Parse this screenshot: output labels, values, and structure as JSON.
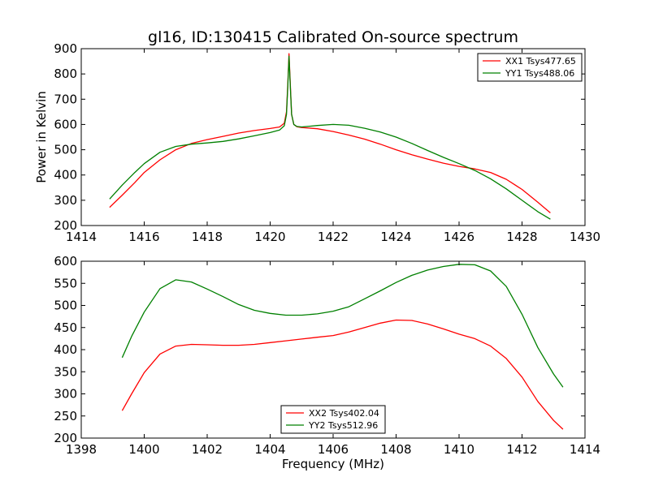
{
  "figure": {
    "title": "gl16, ID:130415 Calibrated On-source spectrum"
  },
  "chart_data": [
    {
      "type": "line",
      "title": "gl16, ID:130415 Calibrated On-source spectrum",
      "xlabel": "",
      "ylabel": "Power in Kelvin",
      "xlim": [
        1414,
        1430
      ],
      "ylim": [
        200,
        900
      ],
      "xticks": [
        1414,
        1416,
        1418,
        1420,
        1422,
        1424,
        1426,
        1428,
        1430
      ],
      "yticks": [
        200,
        300,
        400,
        500,
        600,
        700,
        800,
        900
      ],
      "grid": false,
      "legend": "top-right",
      "series": [
        {
          "name": "XX1 Tsys477.65",
          "color": "#ff0000",
          "x": [
            1414.9,
            1415.3,
            1415.7,
            1416.0,
            1416.5,
            1417.0,
            1417.5,
            1418.0,
            1418.5,
            1419.0,
            1419.5,
            1420.0,
            1420.3,
            1420.45,
            1420.52,
            1420.56,
            1420.6,
            1420.64,
            1420.68,
            1420.75,
            1420.85,
            1421.0,
            1421.5,
            1422.0,
            1422.5,
            1423.0,
            1423.5,
            1424.0,
            1424.5,
            1425.0,
            1425.5,
            1426.0,
            1426.5,
            1427.0,
            1427.5,
            1428.0,
            1428.5,
            1428.9
          ],
          "y": [
            272,
            320,
            370,
            410,
            460,
            500,
            525,
            540,
            553,
            566,
            576,
            584,
            590,
            605,
            650,
            760,
            880,
            760,
            640,
            600,
            591,
            588,
            583,
            572,
            558,
            542,
            522,
            500,
            480,
            463,
            447,
            434,
            424,
            410,
            383,
            343,
            292,
            250
          ]
        },
        {
          "name": "YY1 Tsys488.06",
          "color": "#008000",
          "x": [
            1414.9,
            1415.3,
            1415.7,
            1416.0,
            1416.5,
            1417.0,
            1417.5,
            1418.0,
            1418.5,
            1419.0,
            1419.5,
            1420.0,
            1420.3,
            1420.45,
            1420.52,
            1420.56,
            1420.6,
            1420.64,
            1420.68,
            1420.75,
            1420.85,
            1421.0,
            1421.5,
            1422.0,
            1422.5,
            1423.0,
            1423.5,
            1424.0,
            1424.5,
            1425.0,
            1425.5,
            1426.0,
            1426.5,
            1427.0,
            1427.5,
            1428.0,
            1428.5,
            1428.9
          ],
          "y": [
            305,
            360,
            410,
            445,
            490,
            513,
            522,
            527,
            533,
            543,
            555,
            568,
            578,
            595,
            640,
            750,
            870,
            750,
            640,
            600,
            592,
            590,
            596,
            600,
            597,
            585,
            570,
            550,
            525,
            497,
            470,
            445,
            418,
            385,
            345,
            300,
            255,
            225
          ]
        }
      ]
    },
    {
      "type": "line",
      "title": "",
      "xlabel": "Frequency (MHz)",
      "ylabel": "",
      "xlim": [
        1398,
        1414
      ],
      "ylim": [
        200,
        600
      ],
      "xticks": [
        1398,
        1400,
        1402,
        1404,
        1406,
        1408,
        1410,
        1412,
        1414
      ],
      "yticks": [
        200,
        250,
        300,
        350,
        400,
        450,
        500,
        550,
        600
      ],
      "grid": false,
      "legend": "bottom-center",
      "series": [
        {
          "name": "XX2 Tsys402.04",
          "color": "#ff0000",
          "x": [
            1399.3,
            1399.6,
            1400.0,
            1400.5,
            1401.0,
            1401.5,
            1402.0,
            1402.5,
            1403.0,
            1403.5,
            1404.0,
            1404.5,
            1405.0,
            1405.5,
            1406.0,
            1406.5,
            1407.0,
            1407.5,
            1408.0,
            1408.5,
            1409.0,
            1409.5,
            1410.0,
            1410.5,
            1411.0,
            1411.5,
            1412.0,
            1412.5,
            1413.0,
            1413.3
          ],
          "y": [
            262,
            300,
            348,
            390,
            408,
            412,
            411,
            410,
            410,
            412,
            416,
            420,
            424,
            428,
            432,
            440,
            450,
            460,
            467,
            466,
            458,
            447,
            435,
            425,
            408,
            380,
            338,
            283,
            240,
            220
          ]
        },
        {
          "name": "YY2 Tsys512.96",
          "color": "#008000",
          "x": [
            1399.3,
            1399.6,
            1400.0,
            1400.5,
            1401.0,
            1401.5,
            1402.0,
            1402.5,
            1403.0,
            1403.5,
            1404.0,
            1404.5,
            1405.0,
            1405.5,
            1406.0,
            1406.5,
            1407.0,
            1407.5,
            1408.0,
            1408.5,
            1409.0,
            1409.5,
            1410.0,
            1410.5,
            1411.0,
            1411.5,
            1412.0,
            1412.5,
            1413.0,
            1413.3
          ],
          "y": [
            382,
            430,
            485,
            538,
            558,
            553,
            537,
            520,
            502,
            489,
            482,
            478,
            478,
            481,
            487,
            497,
            515,
            533,
            552,
            568,
            580,
            588,
            593,
            592,
            578,
            543,
            480,
            405,
            345,
            315
          ]
        }
      ]
    }
  ]
}
